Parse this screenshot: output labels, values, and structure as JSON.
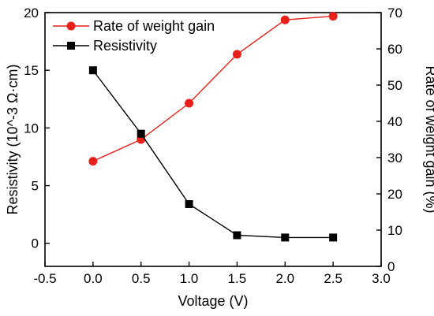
{
  "chart_data": {
    "type": "line",
    "xlabel": "Voltage (V)",
    "ylabel_left": "Resistivity (10^-3 Ω·cm)",
    "ylabel_right": "Rate of weight gain (%)",
    "x_ticks": [
      -0.5,
      0.0,
      0.5,
      1.0,
      1.5,
      2.0,
      2.5,
      3.0
    ],
    "x_tick_labels": [
      "-0.5",
      "0.0",
      "0.5",
      "1.0",
      "1.5",
      "2.0",
      "2.5",
      "3.0"
    ],
    "xlim": [
      -0.5,
      3.0
    ],
    "ylim_left": [
      -2,
      20
    ],
    "ylim_right": [
      0,
      70
    ],
    "left_ticks": [
      0,
      5,
      10,
      15,
      20
    ],
    "left_tick_labels": [
      "0",
      "5",
      "10",
      "15",
      "20"
    ],
    "right_ticks": [
      0,
      10,
      20,
      30,
      40,
      50,
      60,
      70
    ],
    "right_tick_labels": [
      "0",
      "10",
      "20",
      "30",
      "40",
      "50",
      "60",
      "70"
    ],
    "legend_placement": "top-left",
    "series": [
      {
        "name": "Rate of weight gain",
        "axis": "right",
        "color": "#e8201a",
        "marker": "circle",
        "x": [
          0.0,
          0.5,
          1.0,
          1.5,
          2.0,
          2.5
        ],
        "values": [
          29,
          35,
          45,
          58.5,
          68,
          69
        ]
      },
      {
        "name": "Resistivity",
        "axis": "left",
        "color": "#000000",
        "marker": "square",
        "x": [
          0.0,
          0.5,
          1.0,
          1.5,
          2.0,
          2.5
        ],
        "values": [
          15,
          9.5,
          3.4,
          0.7,
          0.5,
          0.5
        ]
      }
    ]
  }
}
